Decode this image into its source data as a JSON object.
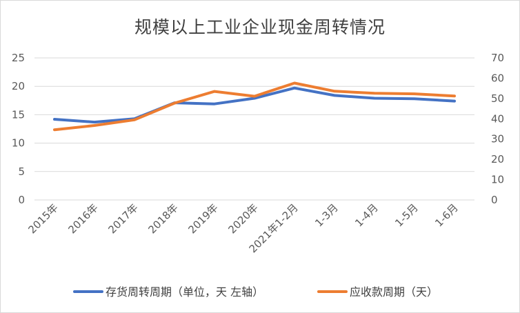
{
  "chart_data": {
    "type": "line",
    "title": "规模以上工业企业现金周转情况",
    "categories": [
      "2015年",
      "2016年",
      "2017年",
      "2018年",
      "2019年",
      "2020年",
      "2021年1-2月",
      "1-3月",
      "1-4月",
      "1-5月",
      "1-6月"
    ],
    "y_left": {
      "min": 0,
      "max": 25,
      "ticks": [
        "0",
        "5",
        "10",
        "15",
        "20",
        "25"
      ]
    },
    "y_right": {
      "min": 0,
      "max": 70,
      "ticks": [
        "0",
        "10",
        "20",
        "30",
        "40",
        "50",
        "60",
        "70"
      ]
    },
    "grid": true,
    "legend_position": "bottom",
    "series": [
      {
        "name": "存货周转周期（单位，天 左轴）",
        "axis": "left",
        "color": "#4472C4",
        "values": [
          14.2,
          13.7,
          14.3,
          17.1,
          16.9,
          17.9,
          19.7,
          18.4,
          17.9,
          17.8,
          17.4
        ]
      },
      {
        "name": "应收款周期（天）",
        "axis": "right",
        "color": "#ED7D31",
        "values": [
          34.6,
          36.7,
          39.5,
          47.7,
          53.5,
          51.1,
          57.6,
          53.6,
          52.6,
          52.3,
          51.2
        ]
      }
    ]
  }
}
